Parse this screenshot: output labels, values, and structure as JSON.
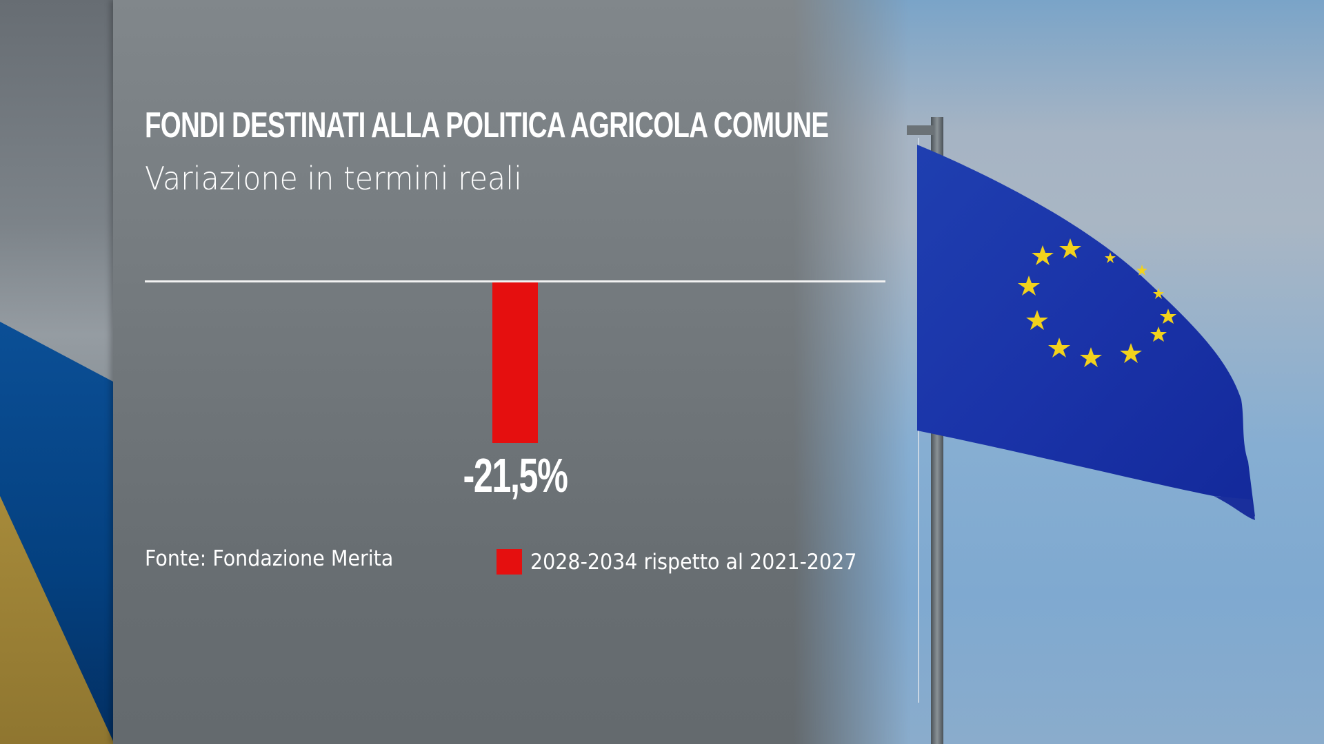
{
  "header": {
    "title": "FONDI DESTINATI ALLA POLITICA AGRICOLA COMUNE",
    "subtitle": "Variazione in termini reali"
  },
  "footer": {
    "source": "Fonte: Fondazione Merita"
  },
  "legend": {
    "label": "2028-2034 rispetto al 2021-2027",
    "color": "#e50f0f"
  },
  "bar": {
    "value_label": "-21,5%",
    "color": "#e50f0f"
  },
  "background": {
    "panel_color": "#747a7e",
    "flag": "eu-flag-icon"
  },
  "chart_data": {
    "type": "bar",
    "title": "FONDI DESTINATI ALLA POLITICA AGRICOLA COMUNE",
    "subtitle": "Variazione in termini reali",
    "categories": [
      "2028-2034 rispetto al 2021-2027"
    ],
    "values": [
      -21.5
    ],
    "value_labels": [
      "-21,5%"
    ],
    "unit": "%",
    "xlabel": "",
    "ylabel": "",
    "ylim": [
      -21.5,
      0
    ],
    "grid": false,
    "legend": {
      "position": "bottom",
      "entries": [
        "2028-2034 rispetto al 2021-2027"
      ]
    },
    "source": "Fonte: Fondazione Merita"
  }
}
